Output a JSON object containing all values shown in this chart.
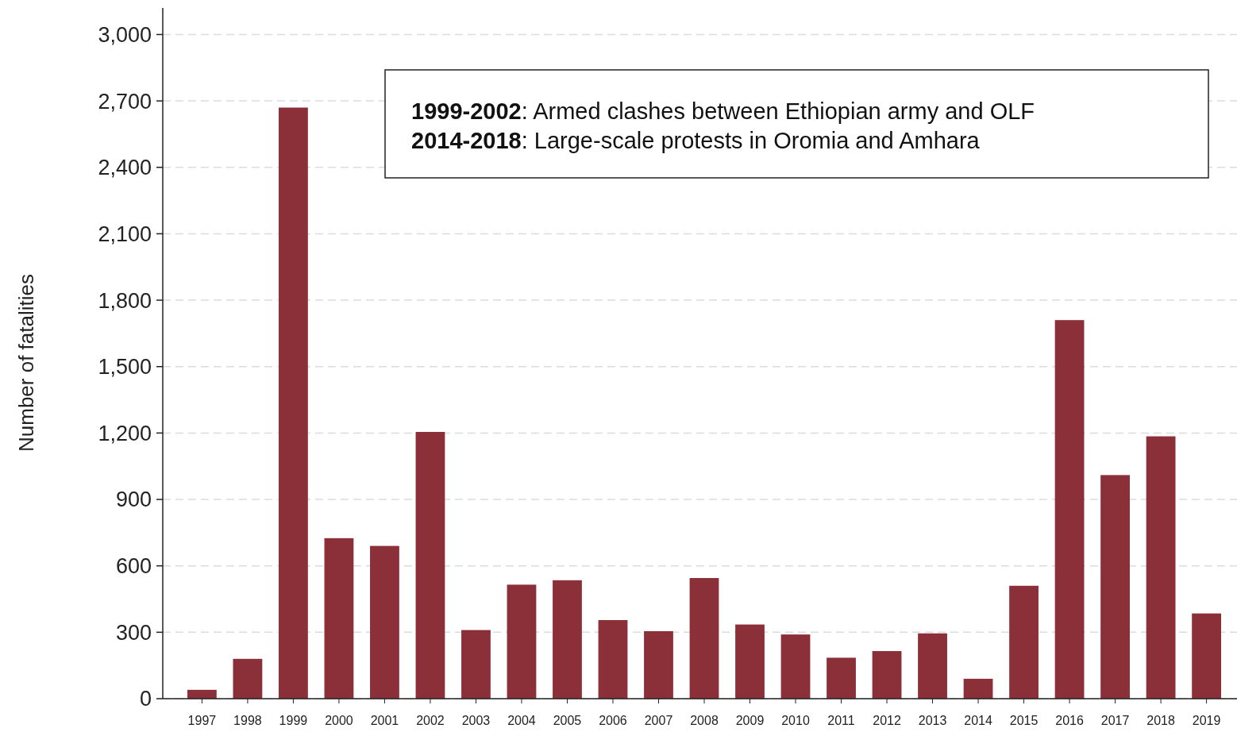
{
  "chart_data": {
    "type": "bar",
    "ylabel": "Number of fatalities",
    "categories": [
      "1997",
      "1998",
      "1999",
      "2000",
      "2001",
      "2002",
      "2003",
      "2004",
      "2005",
      "2006",
      "2007",
      "2008",
      "2009",
      "2010",
      "2011",
      "2012",
      "2013",
      "2014",
      "2015",
      "2016",
      "2017",
      "2018",
      "2019"
    ],
    "values": [
      40,
      180,
      2670,
      725,
      690,
      1205,
      310,
      515,
      535,
      355,
      305,
      545,
      335,
      290,
      185,
      215,
      295,
      90,
      510,
      1710,
      1010,
      1185,
      385
    ],
    "color": "#8b3039",
    "ylim": [
      0,
      3120
    ],
    "yticks": [
      {
        "value": 0,
        "label": "0"
      },
      {
        "value": 300,
        "label": "300"
      },
      {
        "value": 600,
        "label": "600"
      },
      {
        "value": 900,
        "label": "900"
      },
      {
        "value": 1200,
        "label": "1,200"
      },
      {
        "value": 1500,
        "label": "1,500"
      },
      {
        "value": 1800,
        "label": "1,800"
      },
      {
        "value": 2100,
        "label": "2,100"
      },
      {
        "value": 2400,
        "label": "2,400"
      },
      {
        "value": 2700,
        "label": "2,700"
      },
      {
        "value": 3000,
        "label": "3,000"
      }
    ],
    "grid": "y",
    "annotations": [
      "1999-2002: Armed clashes between Ethiopian army and OLF",
      "2014-2018: Large-scale protests in Oromia and Amhara"
    ]
  }
}
